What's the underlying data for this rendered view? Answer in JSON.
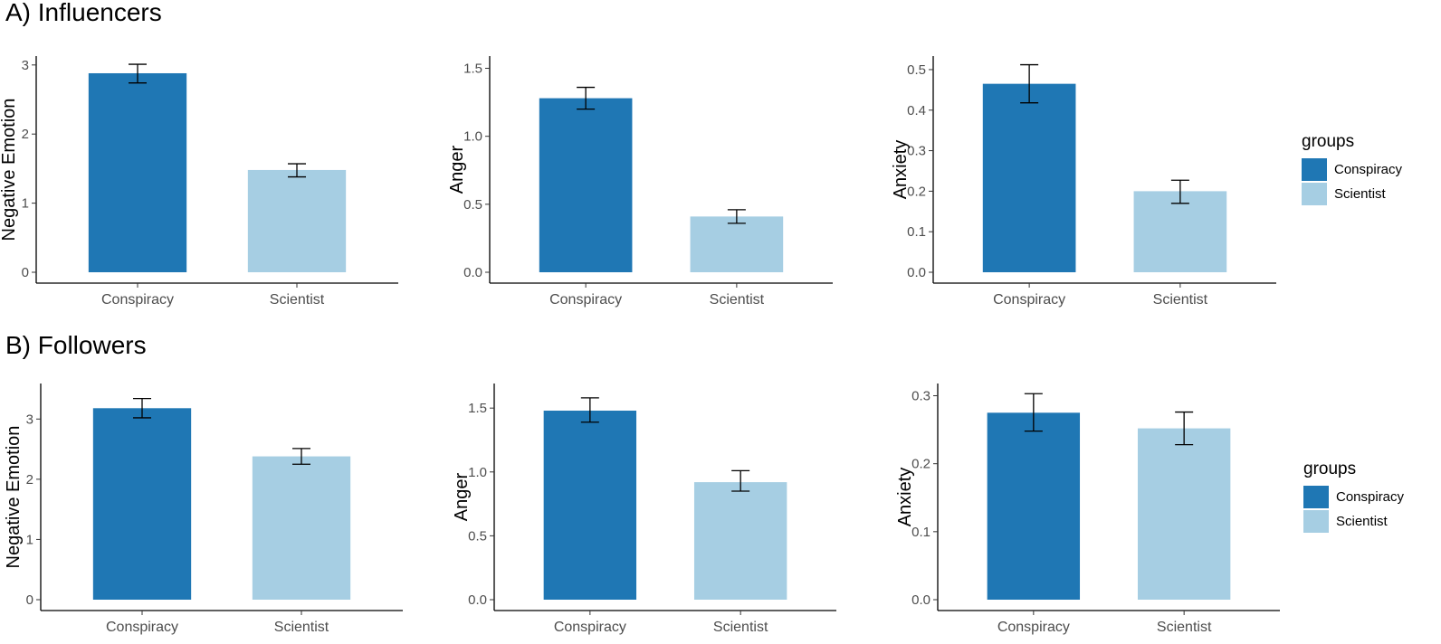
{
  "sections": [
    {
      "title": "A) Influencers"
    },
    {
      "title": "B) Followers"
    }
  ],
  "legend": {
    "title": "groups",
    "items": [
      {
        "label": "Conspiracy",
        "color": "#1F77B4"
      },
      {
        "label": "Scientist",
        "color": "#A6CEE3"
      }
    ]
  },
  "chart_data": [
    {
      "type": "bar",
      "panel": "A) Influencers",
      "ylabel": "Negative Emotion",
      "categories": [
        "Conspiracy",
        "Scientist"
      ],
      "values": [
        2.88,
        1.48
      ],
      "error_lower": [
        2.74,
        1.38
      ],
      "error_upper": [
        3.01,
        1.57
      ],
      "ylim": [
        0,
        3.05
      ],
      "yticks": [
        0,
        1,
        2,
        3
      ],
      "ytick_labels": [
        "0",
        "1",
        "2",
        "3"
      ]
    },
    {
      "type": "bar",
      "panel": "A) Influencers",
      "ylabel": "Anger",
      "categories": [
        "Conspiracy",
        "Scientist"
      ],
      "values": [
        1.28,
        0.41
      ],
      "error_lower": [
        1.2,
        0.36
      ],
      "error_upper": [
        1.36,
        0.46
      ],
      "ylim": [
        0,
        1.55
      ],
      "yticks": [
        0,
        0.5,
        1,
        1.5
      ],
      "ytick_labels": [
        "0.0",
        "0.5",
        "1.0",
        "1.5"
      ]
    },
    {
      "type": "bar",
      "panel": "A) Influencers",
      "ylabel": "Anxiety",
      "categories": [
        "Conspiracy",
        "Scientist"
      ],
      "values": [
        0.465,
        0.2
      ],
      "error_lower": [
        0.418,
        0.17
      ],
      "error_upper": [
        0.512,
        0.227
      ],
      "ylim": [
        0,
        0.52
      ],
      "yticks": [
        0,
        0.1,
        0.2,
        0.3,
        0.4,
        0.5
      ],
      "ytick_labels": [
        "0.0",
        "0.1",
        "0.2",
        "0.3",
        "0.4",
        "0.5"
      ]
    },
    {
      "type": "bar",
      "panel": "B) Followers",
      "ylabel": "Negative Emotion",
      "categories": [
        "Conspiracy",
        "Scientist"
      ],
      "values": [
        3.18,
        2.38
      ],
      "error_lower": [
        3.02,
        2.25
      ],
      "error_upper": [
        3.34,
        2.51
      ],
      "ylim": [
        0,
        3.5
      ],
      "yticks": [
        0,
        1,
        2,
        3
      ],
      "ytick_labels": [
        "0",
        "1",
        "2",
        "3"
      ]
    },
    {
      "type": "bar",
      "panel": "B) Followers",
      "ylabel": "Anger",
      "categories": [
        "Conspiracy",
        "Scientist"
      ],
      "values": [
        1.48,
        0.92
      ],
      "error_lower": [
        1.39,
        0.85
      ],
      "error_upper": [
        1.58,
        1.01
      ],
      "ylim": [
        0,
        1.65
      ],
      "yticks": [
        0,
        0.5,
        1,
        1.5
      ],
      "ytick_labels": [
        "0.0",
        "0.5",
        "1.0",
        "1.5"
      ]
    },
    {
      "type": "bar",
      "panel": "B) Followers",
      "ylabel": "Anxiety",
      "categories": [
        "Conspiracy",
        "Scientist"
      ],
      "values": [
        0.275,
        0.252
      ],
      "error_lower": [
        0.248,
        0.228
      ],
      "error_upper": [
        0.303,
        0.276
      ],
      "ylim": [
        0,
        0.31
      ],
      "yticks": [
        0,
        0.1,
        0.2,
        0.3
      ],
      "ytick_labels": [
        "0.0",
        "0.1",
        "0.2",
        "0.3"
      ]
    }
  ]
}
